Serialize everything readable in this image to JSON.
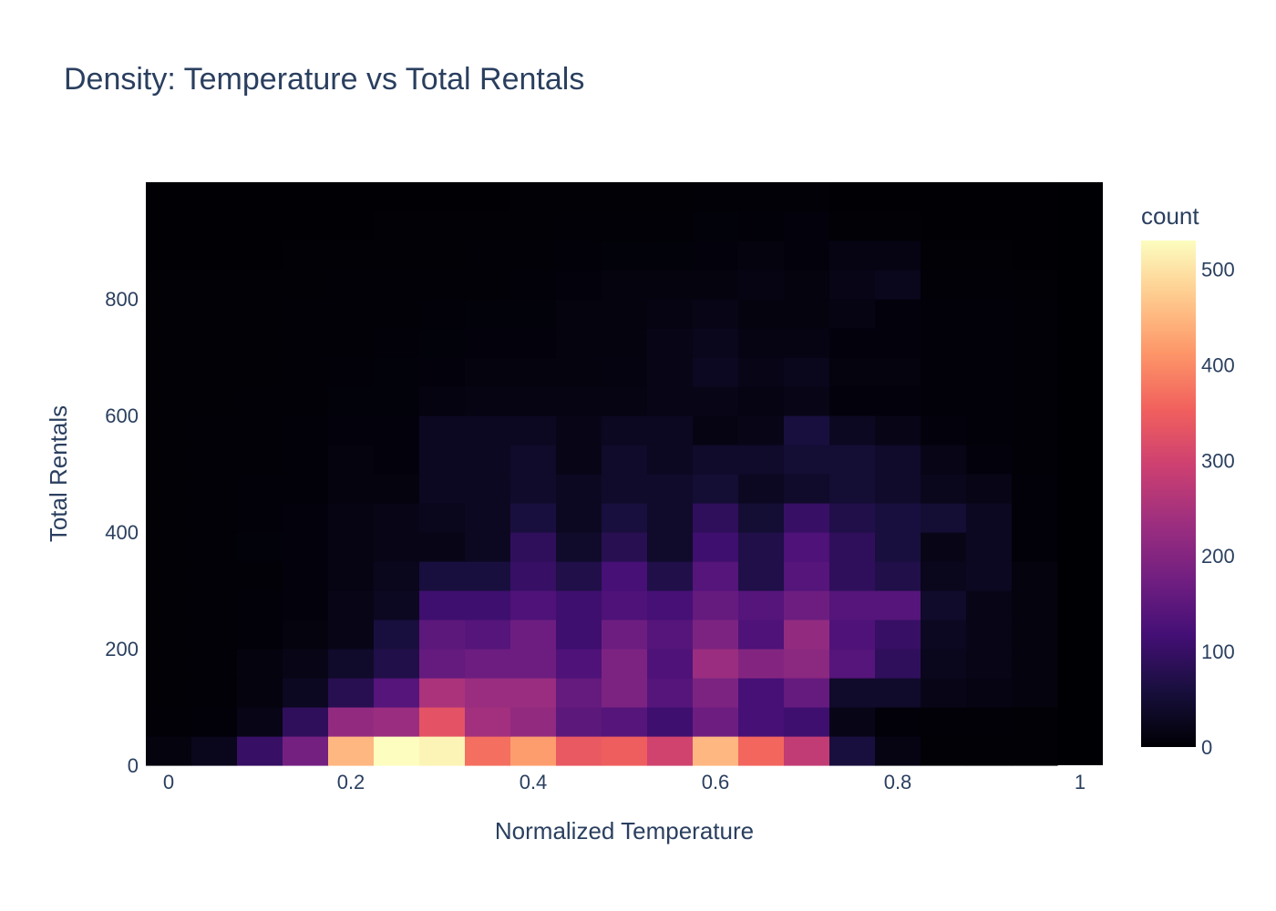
{
  "chart_data": {
    "type": "heatmap",
    "title": "Density: Temperature vs Total Rentals",
    "xlabel": "Normalized Temperature",
    "ylabel": "Total Rentals",
    "colorbar_title": "count",
    "colorscale": [
      "#000004",
      "#180f3d",
      "#440f76",
      "#721f81",
      "#9e2f7f",
      "#cd4071",
      "#f1605d",
      "#fd9668",
      "#feca8d",
      "#fcfdbf"
    ],
    "x_bins_start": [
      0.0,
      0.05,
      0.1,
      0.15,
      0.2,
      0.25,
      0.3,
      0.35,
      0.4,
      0.45,
      0.5,
      0.55,
      0.6,
      0.65,
      0.7,
      0.75,
      0.8,
      0.85,
      0.9,
      0.95
    ],
    "x_bin_size": 0.05,
    "y_bins_start": [
      0,
      50,
      100,
      150,
      200,
      250,
      300,
      350,
      400,
      450,
      500,
      550,
      600,
      650,
      700,
      750,
      800,
      850,
      900,
      950
    ],
    "y_bin_size": 50,
    "xlim": [
      -0.025,
      1.025
    ],
    "ylim": [
      0,
      1000
    ],
    "xticks": [
      "0",
      "0.2",
      "0.4",
      "0.6",
      "0.8",
      "1"
    ],
    "xtick_values": [
      0,
      0.2,
      0.4,
      0.6,
      0.8,
      1
    ],
    "yticks": [
      "0",
      "200",
      "400",
      "600",
      "800"
    ],
    "ytick_values": [
      0,
      200,
      400,
      600,
      800
    ],
    "colorbar_ticks": [
      "0",
      "100",
      "200",
      "300",
      "400",
      "500"
    ],
    "colorbar_tick_values": [
      0,
      100,
      200,
      300,
      400,
      500
    ],
    "zlim": [
      0,
      530
    ],
    "z": [
      [
        10,
        25,
        100,
        180,
        450,
        530,
        520,
        370,
        420,
        340,
        350,
        300,
        450,
        360,
        280,
        60,
        15,
        2,
        2,
        2
      ],
      [
        3,
        5,
        20,
        90,
        220,
        230,
        330,
        240,
        220,
        150,
        140,
        110,
        170,
        120,
        110,
        20,
        5,
        3,
        3,
        2
      ],
      [
        2,
        4,
        10,
        30,
        80,
        140,
        250,
        230,
        230,
        160,
        190,
        140,
        190,
        120,
        160,
        40,
        40,
        20,
        15,
        10
      ],
      [
        2,
        3,
        10,
        20,
        40,
        70,
        160,
        170,
        170,
        130,
        190,
        130,
        230,
        200,
        210,
        140,
        90,
        25,
        20,
        10
      ],
      [
        2,
        3,
        5,
        10,
        20,
        60,
        150,
        140,
        170,
        110,
        170,
        140,
        190,
        130,
        220,
        130,
        100,
        30,
        20,
        10
      ],
      [
        2,
        3,
        5,
        8,
        20,
        30,
        110,
        110,
        130,
        110,
        130,
        120,
        160,
        140,
        170,
        140,
        140,
        40,
        20,
        10
      ],
      [
        2,
        3,
        4,
        8,
        15,
        25,
        60,
        60,
        100,
        70,
        120,
        70,
        140,
        70,
        140,
        90,
        70,
        25,
        30,
        10
      ],
      [
        2,
        3,
        6,
        8,
        15,
        20,
        20,
        30,
        90,
        40,
        80,
        40,
        110,
        70,
        130,
        90,
        60,
        20,
        30,
        5
      ],
      [
        2,
        3,
        5,
        8,
        15,
        20,
        25,
        30,
        60,
        30,
        60,
        40,
        90,
        50,
        100,
        70,
        60,
        50,
        30,
        5
      ],
      [
        2,
        3,
        5,
        5,
        10,
        10,
        30,
        30,
        40,
        30,
        40,
        40,
        50,
        30,
        40,
        50,
        40,
        25,
        20,
        5
      ],
      [
        2,
        3,
        4,
        5,
        10,
        8,
        30,
        30,
        40,
        20,
        40,
        30,
        40,
        40,
        50,
        50,
        40,
        20,
        8,
        3
      ],
      [
        2,
        3,
        4,
        5,
        8,
        8,
        30,
        30,
        30,
        20,
        30,
        30,
        15,
        20,
        60,
        30,
        20,
        8,
        5,
        3
      ],
      [
        2,
        2,
        3,
        4,
        6,
        6,
        12,
        15,
        15,
        15,
        15,
        20,
        20,
        15,
        20,
        8,
        8,
        5,
        5,
        3
      ],
      [
        2,
        2,
        2,
        4,
        5,
        6,
        8,
        10,
        10,
        10,
        12,
        20,
        30,
        20,
        25,
        10,
        10,
        5,
        5,
        3
      ],
      [
        2,
        2,
        2,
        3,
        4,
        5,
        6,
        8,
        8,
        10,
        10,
        20,
        25,
        15,
        15,
        8,
        8,
        5,
        5,
        3
      ],
      [
        2,
        2,
        2,
        3,
        3,
        4,
        5,
        6,
        6,
        10,
        10,
        15,
        20,
        10,
        10,
        15,
        8,
        5,
        5,
        3
      ],
      [
        2,
        2,
        2,
        2,
        3,
        3,
        3,
        4,
        5,
        8,
        10,
        10,
        10,
        15,
        10,
        20,
        25,
        3,
        3,
        2
      ],
      [
        1,
        1,
        1,
        2,
        2,
        2,
        2,
        3,
        3,
        5,
        6,
        6,
        8,
        10,
        8,
        15,
        15,
        2,
        2,
        1
      ],
      [
        1,
        1,
        1,
        1,
        1,
        2,
        2,
        2,
        2,
        3,
        3,
        4,
        6,
        5,
        8,
        2,
        2,
        1,
        1,
        1
      ],
      [
        1,
        1,
        1,
        1,
        1,
        1,
        1,
        1,
        2,
        2,
        2,
        2,
        3,
        3,
        3,
        1,
        1,
        1,
        1,
        1
      ]
    ]
  }
}
